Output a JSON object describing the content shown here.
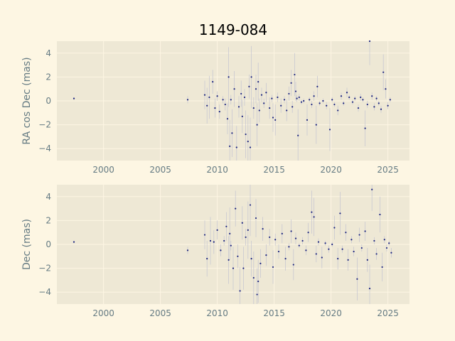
{
  "chart_data": {
    "type": "scatter",
    "title": "1149-084",
    "colors": {
      "background": "#fdf6e3",
      "axes_face": "#eee8d5",
      "grid": "#fdf6e3",
      "marker": "#1a237e",
      "errorbar": "#c8c8d2",
      "text": "#657b83"
    },
    "grid": true,
    "panels": [
      {
        "name": "ra",
        "ylabel": "RA cos Dec (mas)",
        "xlim": [
          1995.9,
          2026.9
        ],
        "ylim": [
          -5,
          5
        ],
        "xticks": [
          2000,
          2005,
          2010,
          2015,
          2020,
          2025
        ],
        "yticks": [
          -4,
          -2,
          0,
          2,
          4
        ],
        "points": [
          [
            1997.4,
            0.2,
            0.1
          ],
          [
            2007.4,
            0.1,
            0.3
          ],
          [
            2008.9,
            0.5,
            1.2
          ],
          [
            2009.1,
            -0.4,
            1.5
          ],
          [
            2009.3,
            0.3,
            1.8
          ],
          [
            2009.6,
            1.6,
            1.0
          ],
          [
            2009.8,
            -0.6,
            0.8
          ],
          [
            2010.0,
            0.4,
            0.4
          ],
          [
            2010.2,
            -0.9,
            0.6
          ],
          [
            2010.5,
            0.1,
            0.3
          ],
          [
            2010.7,
            -0.3,
            0.5
          ],
          [
            2010.9,
            -1.5,
            1.3
          ],
          [
            2011.0,
            2.0,
            2.5
          ],
          [
            2011.1,
            -3.8,
            2.2
          ],
          [
            2011.2,
            0.1,
            0.4
          ],
          [
            2011.3,
            -2.7,
            2.0
          ],
          [
            2011.5,
            1.0,
            1.5
          ],
          [
            2011.7,
            -3.9,
            1.8
          ],
          [
            2011.9,
            -0.5,
            0.9
          ],
          [
            2012.1,
            0.6,
            1.1
          ],
          [
            2012.2,
            -1.3,
            1.4
          ],
          [
            2012.4,
            0.3,
            0.7
          ],
          [
            2012.5,
            -2.8,
            2.0
          ],
          [
            2012.7,
            -3.4,
            2.2
          ],
          [
            2012.8,
            1.2,
            1.0
          ],
          [
            2012.9,
            -3.9,
            2.5
          ],
          [
            2013.0,
            2.0,
            2.6
          ],
          [
            2013.2,
            -0.6,
            0.9
          ],
          [
            2013.4,
            1.0,
            1.2
          ],
          [
            2013.5,
            -2.0,
            1.8
          ],
          [
            2013.6,
            1.6,
            1.6
          ],
          [
            2013.7,
            -0.8,
            1.0
          ],
          [
            2013.9,
            0.5,
            0.6
          ],
          [
            2014.1,
            -0.2,
            0.4
          ],
          [
            2014.3,
            0.7,
            0.8
          ],
          [
            2014.6,
            -0.6,
            0.9
          ],
          [
            2014.8,
            0.2,
            0.3
          ],
          [
            2014.9,
            -1.4,
            1.2
          ],
          [
            2015.1,
            -1.6,
            1.3
          ],
          [
            2015.3,
            0.3,
            0.4
          ],
          [
            2015.6,
            -0.4,
            0.6
          ],
          [
            2015.9,
            0.1,
            0.3
          ],
          [
            2016.1,
            -0.8,
            0.9
          ],
          [
            2016.3,
            0.6,
            0.6
          ],
          [
            2016.5,
            1.5,
            1.1
          ],
          [
            2016.6,
            -0.5,
            0.5
          ],
          [
            2016.8,
            2.2,
            1.8
          ],
          [
            2016.9,
            0.8,
            0.8
          ],
          [
            2017.0,
            0.2,
            0.3
          ],
          [
            2017.1,
            -2.9,
            2.2
          ],
          [
            2017.2,
            0.3,
            0.3
          ],
          [
            2017.4,
            -0.1,
            0.2
          ],
          [
            2017.6,
            0.0,
            0.2
          ],
          [
            2017.9,
            -1.6,
            1.3
          ],
          [
            2018.1,
            0.1,
            0.2
          ],
          [
            2018.3,
            -0.3,
            0.3
          ],
          [
            2018.5,
            0.4,
            0.4
          ],
          [
            2018.7,
            -2.0,
            1.6
          ],
          [
            2018.8,
            1.2,
            0.9
          ],
          [
            2019.0,
            -0.2,
            0.2
          ],
          [
            2019.3,
            0.0,
            0.2
          ],
          [
            2019.6,
            -0.4,
            0.3
          ],
          [
            2019.9,
            -2.4,
            1.8
          ],
          [
            2020.1,
            0.1,
            0.2
          ],
          [
            2020.3,
            -0.3,
            0.2
          ],
          [
            2020.6,
            -0.8,
            0.4
          ],
          [
            2020.9,
            0.4,
            0.3
          ],
          [
            2021.1,
            -0.2,
            0.2
          ],
          [
            2021.4,
            0.7,
            0.4
          ],
          [
            2021.6,
            0.3,
            0.2
          ],
          [
            2021.9,
            -0.1,
            0.2
          ],
          [
            2022.1,
            0.2,
            0.2
          ],
          [
            2022.4,
            -0.6,
            0.3
          ],
          [
            2022.6,
            0.3,
            0.3
          ],
          [
            2022.8,
            0.1,
            0.2
          ],
          [
            2023.0,
            -2.3,
            1.5
          ],
          [
            2023.2,
            -0.3,
            0.3
          ],
          [
            2023.4,
            5.0,
            2.0
          ],
          [
            2023.6,
            0.4,
            0.3
          ],
          [
            2023.8,
            -0.5,
            0.3
          ],
          [
            2024.0,
            0.2,
            0.2
          ],
          [
            2024.2,
            -0.2,
            0.2
          ],
          [
            2024.4,
            -0.7,
            0.3
          ],
          [
            2024.6,
            2.4,
            1.5
          ],
          [
            2024.8,
            1.0,
            0.8
          ],
          [
            2025.0,
            -0.4,
            0.3
          ],
          [
            2025.2,
            0.1,
            0.2
          ]
        ]
      },
      {
        "name": "dec",
        "ylabel": "Dec (mas)",
        "xlim": [
          1995.9,
          2026.9
        ],
        "ylim": [
          -5,
          5
        ],
        "xticks": [
          2000,
          2005,
          2010,
          2015,
          2020,
          2025
        ],
        "yticks": [
          -4,
          -2,
          0,
          2,
          4
        ],
        "points": [
          [
            1997.4,
            0.2,
            0.1
          ],
          [
            2007.4,
            -0.5,
            0.3
          ],
          [
            2008.9,
            0.8,
            1.2
          ],
          [
            2009.1,
            -1.2,
            1.5
          ],
          [
            2009.4,
            0.3,
            2.0
          ],
          [
            2009.7,
            0.2,
            1.0
          ],
          [
            2010.0,
            1.2,
            0.8
          ],
          [
            2010.3,
            -0.5,
            0.5
          ],
          [
            2010.6,
            0.3,
            0.4
          ],
          [
            2010.8,
            1.5,
            1.2
          ],
          [
            2011.0,
            -1.3,
            2.0
          ],
          [
            2011.1,
            0.9,
            2.2
          ],
          [
            2011.2,
            -0.1,
            0.4
          ],
          [
            2011.4,
            -2.0,
            1.8
          ],
          [
            2011.6,
            3.0,
            1.5
          ],
          [
            2011.8,
            -1.0,
            1.0
          ],
          [
            2012.0,
            -3.9,
            2.0
          ],
          [
            2012.2,
            1.8,
            1.4
          ],
          [
            2012.3,
            -2.0,
            1.8
          ],
          [
            2012.5,
            0.6,
            0.7
          ],
          [
            2012.7,
            1.2,
            2.4
          ],
          [
            2012.9,
            3.3,
            2.6
          ],
          [
            2013.0,
            -1.2,
            1.5
          ],
          [
            2013.2,
            -2.8,
            2.2
          ],
          [
            2013.4,
            2.2,
            1.6
          ],
          [
            2013.5,
            -4.2,
            2.2
          ],
          [
            2013.6,
            -3.1,
            1.8
          ],
          [
            2013.8,
            -1.6,
            1.2
          ],
          [
            2014.0,
            1.3,
            1.0
          ],
          [
            2014.3,
            -0.9,
            0.9
          ],
          [
            2014.6,
            0.6,
            0.7
          ],
          [
            2014.9,
            -1.9,
            1.4
          ],
          [
            2015.1,
            0.4,
            0.5
          ],
          [
            2015.4,
            -0.6,
            0.6
          ],
          [
            2015.7,
            0.9,
            0.8
          ],
          [
            2016.0,
            -1.2,
            1.0
          ],
          [
            2016.3,
            -0.2,
            0.3
          ],
          [
            2016.5,
            1.1,
            1.0
          ],
          [
            2016.7,
            -1.7,
            1.3
          ],
          [
            2016.9,
            0.5,
            0.5
          ],
          [
            2017.2,
            -0.1,
            0.2
          ],
          [
            2017.5,
            0.3,
            0.3
          ],
          [
            2017.8,
            -0.5,
            0.4
          ],
          [
            2018.0,
            1.0,
            0.8
          ],
          [
            2018.3,
            2.7,
            1.8
          ],
          [
            2018.5,
            2.3,
            1.6
          ],
          [
            2018.7,
            -0.8,
            0.7
          ],
          [
            2018.9,
            0.2,
            0.3
          ],
          [
            2019.2,
            -1.1,
            0.9
          ],
          [
            2019.5,
            0.1,
            0.2
          ],
          [
            2019.8,
            -0.4,
            0.3
          ],
          [
            2020.1,
            0.0,
            0.2
          ],
          [
            2020.3,
            1.4,
            1.0
          ],
          [
            2020.6,
            -1.2,
            0.9
          ],
          [
            2020.8,
            2.6,
            1.8
          ],
          [
            2021.0,
            -0.4,
            0.3
          ],
          [
            2021.3,
            1.0,
            0.7
          ],
          [
            2021.5,
            -1.3,
            0.9
          ],
          [
            2021.8,
            0.4,
            0.3
          ],
          [
            2022.0,
            -0.6,
            0.4
          ],
          [
            2022.3,
            -2.9,
            1.8
          ],
          [
            2022.5,
            0.8,
            0.6
          ],
          [
            2022.7,
            -0.3,
            0.3
          ],
          [
            2023.0,
            1.1,
            0.8
          ],
          [
            2023.2,
            -1.3,
            1.0
          ],
          [
            2023.4,
            -3.7,
            2.0
          ],
          [
            2023.6,
            4.6,
            1.8
          ],
          [
            2023.8,
            0.3,
            0.3
          ],
          [
            2024.0,
            -0.8,
            0.5
          ],
          [
            2024.3,
            2.5,
            1.5
          ],
          [
            2024.5,
            -1.9,
            1.2
          ],
          [
            2024.7,
            0.4,
            0.3
          ],
          [
            2024.9,
            -0.3,
            0.3
          ],
          [
            2025.1,
            0.1,
            0.2
          ],
          [
            2025.3,
            -0.7,
            0.4
          ]
        ]
      }
    ]
  }
}
